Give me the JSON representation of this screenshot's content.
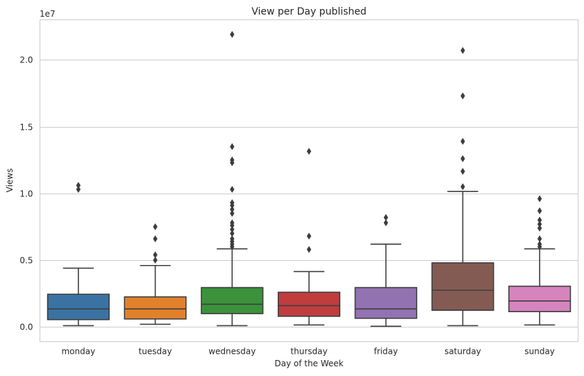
{
  "chart_data": {
    "type": "boxplot",
    "title": "View per Day published",
    "xlabel": "Day of the Week",
    "ylabel": "Views",
    "offset_text": "1e7",
    "y_scale": 10000000,
    "ylim": [
      -1100000,
      23000000
    ],
    "yticks": [
      0,
      5000000,
      10000000,
      15000000,
      20000000
    ],
    "ytick_labels": [
      "0.0",
      "0.5",
      "1.0",
      "1.5",
      "2.0"
    ],
    "grid": true,
    "categories": [
      {
        "name": "monday",
        "color": "#3a73a3",
        "min": 100000,
        "q1": 550000,
        "median": 1350000,
        "q3": 2450000,
        "max": 4400000,
        "outliers": [
          10300000,
          10600000
        ]
      },
      {
        "name": "tuesday",
        "color": "#e1812c",
        "min": 200000,
        "q1": 600000,
        "median": 1350000,
        "q3": 2250000,
        "max": 4600000,
        "outliers": [
          5000000,
          5400000,
          6600000,
          7500000
        ]
      },
      {
        "name": "wednesday",
        "color": "#3b923b",
        "min": 100000,
        "q1": 1000000,
        "median": 1700000,
        "q3": 2950000,
        "max": 5850000,
        "outliers": [
          6000000,
          6200000,
          6400000,
          6600000,
          7000000,
          7300000,
          7600000,
          7800000,
          8500000,
          8800000,
          9100000,
          9300000,
          10300000,
          12300000,
          12500000,
          13500000,
          21900000
        ]
      },
      {
        "name": "thursday",
        "color": "#c03d3e",
        "min": 150000,
        "q1": 800000,
        "median": 1600000,
        "q3": 2600000,
        "max": 4150000,
        "outliers": [
          5800000,
          6800000,
          13150000
        ]
      },
      {
        "name": "friday",
        "color": "#9372b2",
        "min": 50000,
        "q1": 650000,
        "median": 1350000,
        "q3": 2950000,
        "max": 6200000,
        "outliers": [
          7800000,
          8200000
        ]
      },
      {
        "name": "saturday",
        "color": "#845b53",
        "min": 100000,
        "q1": 1250000,
        "median": 2750000,
        "q3": 4800000,
        "max": 10150000,
        "outliers": [
          10500000,
          11650000,
          12600000,
          13900000,
          17300000,
          20700000
        ]
      },
      {
        "name": "sunday",
        "color": "#d684bd",
        "min": 150000,
        "q1": 1150000,
        "median": 1950000,
        "q3": 3050000,
        "max": 5850000,
        "outliers": [
          6000000,
          6200000,
          6600000,
          7400000,
          7700000,
          8000000,
          8700000,
          9600000
        ]
      }
    ]
  }
}
